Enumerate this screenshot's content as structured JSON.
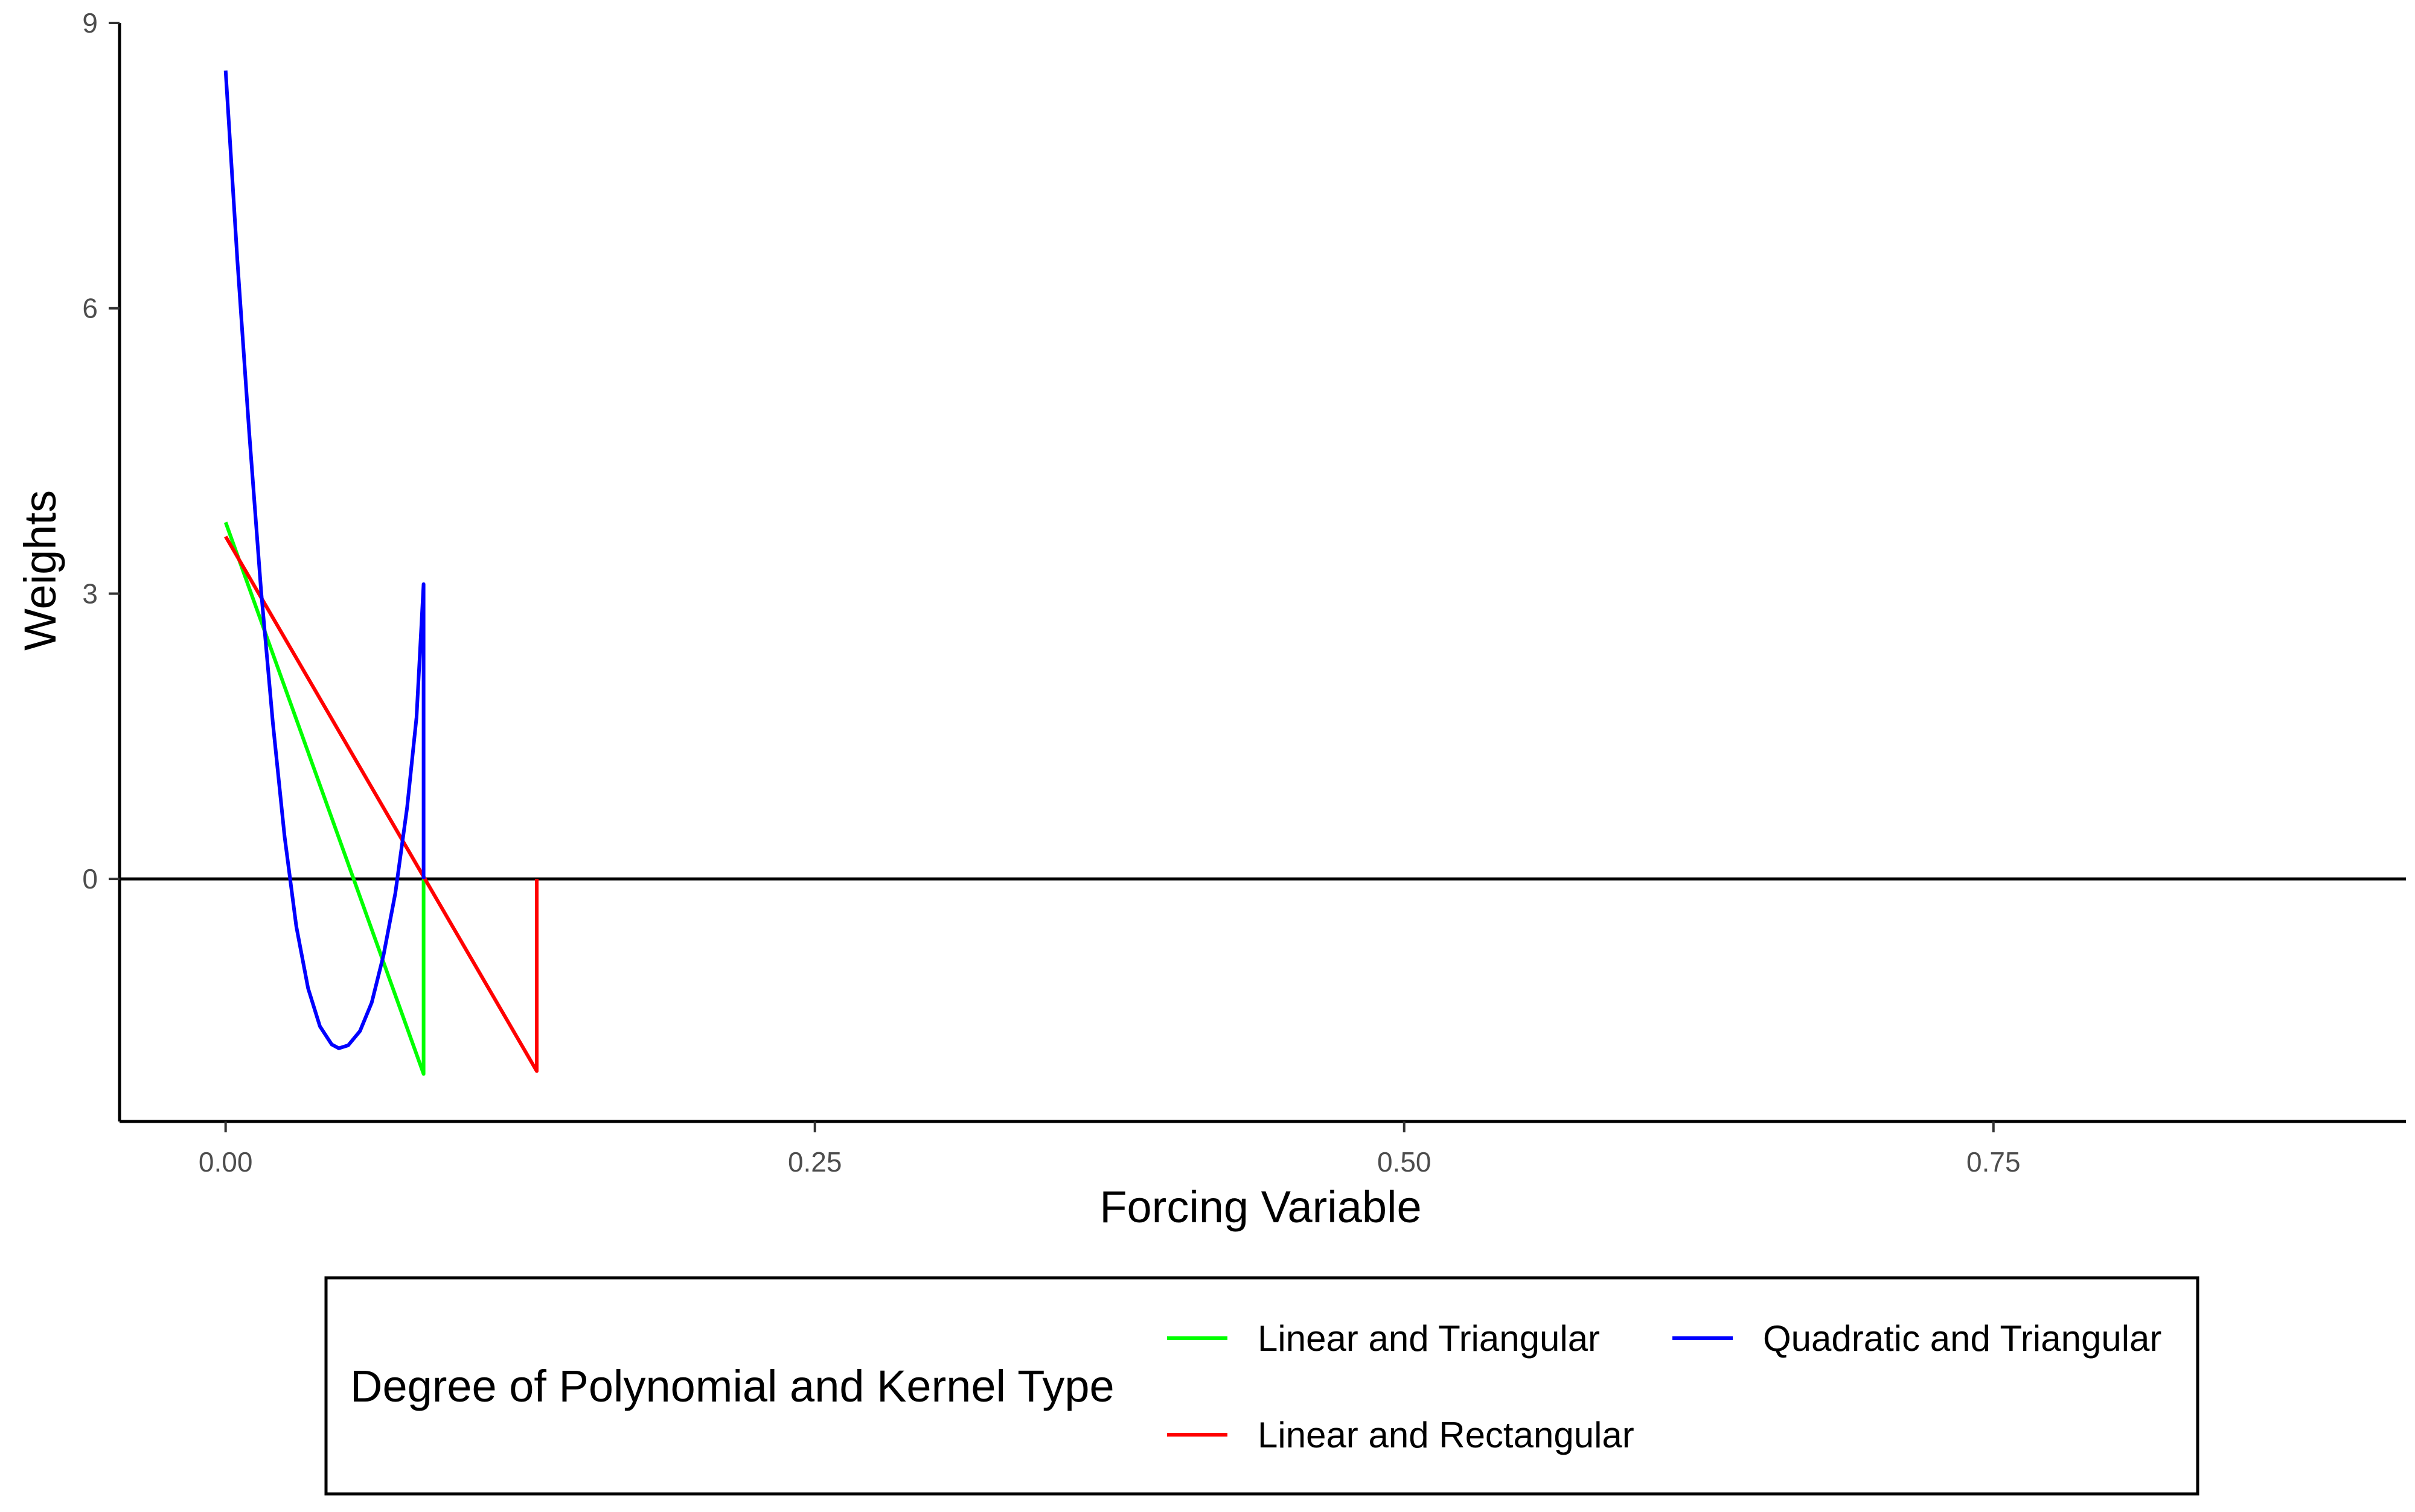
{
  "chart_data": {
    "type": "line",
    "title": "",
    "xlabel": "Forcing Variable",
    "ylabel": "Weights",
    "xlim": [
      -0.045,
      0.925
    ],
    "ylim": [
      -2.55,
      9.0
    ],
    "x_ticks": [
      0.0,
      0.25,
      0.5,
      0.75
    ],
    "x_tick_labels": [
      "0.00",
      "0.25",
      "0.50",
      "0.75"
    ],
    "y_ticks": [
      0,
      3,
      6,
      9
    ],
    "y_tick_labels": [
      "0",
      "3",
      "6",
      "9"
    ],
    "grid": false,
    "reference_line": {
      "y": 0,
      "color": "#000000"
    },
    "legend": {
      "title": "Degree of Polynomial and Kernel Type",
      "position": "bottom"
    },
    "series": [
      {
        "name": "Linear and Triangular",
        "color": "#00ff00",
        "points": [
          [
            0.0,
            3.75
          ],
          [
            0.084,
            -2.05
          ],
          [
            0.084,
            0.0
          ]
        ]
      },
      {
        "name": "Linear and Rectangular",
        "color": "#ff0000",
        "points": [
          [
            0.0,
            3.6
          ],
          [
            0.132,
            -2.02
          ],
          [
            0.132,
            0.0
          ]
        ]
      },
      {
        "name": "Quadratic and Triangular",
        "color": "#0000ff",
        "points": [
          [
            0.0,
            8.5
          ],
          [
            0.005,
            6.5
          ],
          [
            0.01,
            4.7
          ],
          [
            0.015,
            3.05
          ],
          [
            0.02,
            1.65
          ],
          [
            0.025,
            0.45
          ],
          [
            0.03,
            -0.5
          ],
          [
            0.035,
            -1.15
          ],
          [
            0.04,
            -1.55
          ],
          [
            0.045,
            -1.74
          ],
          [
            0.048,
            -1.78
          ],
          [
            0.052,
            -1.75
          ],
          [
            0.057,
            -1.6
          ],
          [
            0.062,
            -1.3
          ],
          [
            0.067,
            -0.8
          ],
          [
            0.072,
            -0.15
          ],
          [
            0.077,
            0.75
          ],
          [
            0.081,
            1.7
          ],
          [
            0.084,
            3.1
          ],
          [
            0.084,
            0.0
          ]
        ]
      }
    ]
  }
}
